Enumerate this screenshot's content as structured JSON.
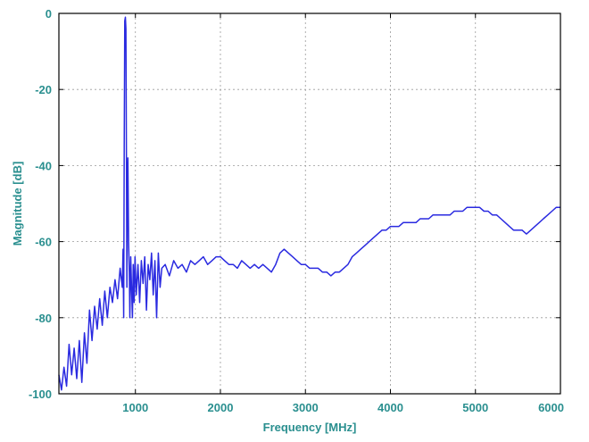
{
  "colors": {
    "line": "#2a2ae0",
    "text": "#2a8f8f",
    "grid": "#9a9a9a",
    "frame": "#000000"
  },
  "chart_data": {
    "type": "line",
    "title": "",
    "xlabel": "Frequency [MHz]",
    "ylabel": "Magnitude [dB]",
    "xlim": [
      100,
      6000
    ],
    "ylim": [
      -100,
      0
    ],
    "xticks": [
      1000,
      2000,
      3000,
      4000,
      5000,
      6000
    ],
    "xtick_labels": [
      "1000",
      "2000",
      "3000",
      "4000",
      "5000",
      "6000"
    ],
    "yticks": [
      0,
      -20,
      -40,
      -60,
      -80,
      -100
    ],
    "ytick_labels": [
      "0",
      "-20",
      "-40",
      "-60",
      "-80",
      "-100"
    ],
    "grid": true,
    "series": [
      {
        "x": [
          100,
          130,
          160,
          190,
          220,
          250,
          280,
          310,
          340,
          370,
          400,
          430,
          460,
          490,
          520,
          550,
          580,
          610,
          640,
          670,
          700,
          730,
          760,
          790,
          820,
          845,
          855,
          862,
          868,
          875,
          882,
          888,
          895,
          900,
          905,
          912,
          920,
          928,
          935,
          945,
          955,
          965,
          975,
          985,
          995,
          1010,
          1030,
          1050,
          1070,
          1090,
          1110,
          1130,
          1150,
          1170,
          1190,
          1210,
          1230,
          1250,
          1270,
          1290,
          1310,
          1350,
          1400,
          1450,
          1500,
          1550,
          1600,
          1650,
          1700,
          1750,
          1800,
          1850,
          1900,
          1950,
          2000,
          2050,
          2100,
          2150,
          2200,
          2250,
          2300,
          2350,
          2400,
          2450,
          2500,
          2550,
          2600,
          2650,
          2700,
          2750,
          2800,
          2850,
          2900,
          2950,
          3000,
          3050,
          3100,
          3150,
          3200,
          3250,
          3300,
          3350,
          3400,
          3450,
          3500,
          3550,
          3600,
          3650,
          3700,
          3750,
          3800,
          3850,
          3900,
          3950,
          4000,
          4050,
          4100,
          4150,
          4200,
          4250,
          4300,
          4350,
          4400,
          4450,
          4500,
          4550,
          4600,
          4650,
          4700,
          4750,
          4800,
          4850,
          4900,
          4950,
          5000,
          5050,
          5100,
          5150,
          5200,
          5250,
          5300,
          5350,
          5400,
          5450,
          5500,
          5550,
          5600,
          5650,
          5700,
          5750,
          5800,
          5850,
          5900,
          5950,
          6000
        ],
        "values": [
          -95,
          -99,
          -93,
          -98,
          -87,
          -95,
          -88,
          -96,
          -86,
          -97,
          -84,
          -92,
          -78,
          -86,
          -77,
          -83,
          -75,
          -82,
          -73,
          -80,
          -72,
          -76,
          -70,
          -75,
          -67,
          -72,
          -62,
          -80,
          -35,
          -2,
          -1,
          -4,
          -40,
          -72,
          -45,
          -38,
          -60,
          -68,
          -80,
          -64,
          -72,
          -80,
          -66,
          -76,
          -64,
          -74,
          -66,
          -76,
          -65,
          -71,
          -64,
          -78,
          -66,
          -70,
          -63,
          -74,
          -65,
          -80,
          -63,
          -72,
          -67,
          -66,
          -69,
          -65,
          -67,
          -66,
          -68,
          -65,
          -66,
          -65,
          -64,
          -66,
          -65,
          -64,
          -64,
          -65,
          -66,
          -66,
          -67,
          -65,
          -66,
          -67,
          -66,
          -67,
          -66,
          -67,
          -68,
          -66,
          -63,
          -62,
          -63,
          -64,
          -65,
          -66,
          -66,
          -67,
          -67,
          -67,
          -68,
          -68,
          -69,
          -68,
          -68,
          -67,
          -66,
          -64,
          -63,
          -62,
          -61,
          -60,
          -59,
          -58,
          -57,
          -57,
          -56,
          -56,
          -56,
          -55,
          -55,
          -55,
          -55,
          -54,
          -54,
          -54,
          -53,
          -53,
          -53,
          -53,
          -53,
          -52,
          -52,
          -52,
          -51,
          -51,
          -51,
          -51,
          -52,
          -52,
          -53,
          -53,
          -54,
          -55,
          -56,
          -57,
          -57,
          -57,
          -58,
          -57,
          -56,
          -55,
          -54,
          -53,
          -52,
          -51,
          -51
        ]
      }
    ]
  }
}
